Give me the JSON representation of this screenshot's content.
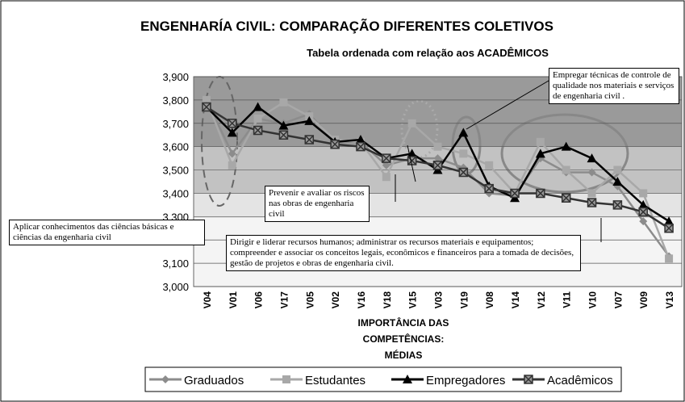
{
  "chart_data": {
    "type": "line",
    "title": "ENGENHARÍA CIVIL: COMPARAÇÃO DIFERENTES COLETIVOS",
    "subtitle": "Tabela  ordenada com relação aos ACADÊMICOS",
    "x_label": [
      "IMPORTÂNCIA DAS",
      "COMPETÊNCIAS:",
      "MÉDIAS"
    ],
    "categories": [
      "V04",
      "V01",
      "V06",
      "V17",
      "V05",
      "V02",
      "V16",
      "V18",
      "V15",
      "V03",
      "V19",
      "V08",
      "V14",
      "V12",
      "V11",
      "V10",
      "V07",
      "V09",
      "V13"
    ],
    "series": [
      {
        "name": "Graduados",
        "color": "#8c8c8c",
        "marker": "diamond",
        "values": [
          3.8,
          3.57,
          3.72,
          3.7,
          3.74,
          3.62,
          3.62,
          3.52,
          3.55,
          3.55,
          3.51,
          3.4,
          3.39,
          3.55,
          3.49,
          3.49,
          3.43,
          3.28,
          3.13
        ]
      },
      {
        "name": "Estudantes",
        "color": "#a8a8a8",
        "marker": "square",
        "values": [
          3.8,
          3.52,
          3.72,
          3.79,
          3.73,
          3.63,
          3.62,
          3.47,
          3.7,
          3.6,
          3.57,
          3.52,
          3.4,
          3.62,
          3.5,
          3.4,
          3.5,
          3.4,
          3.12
        ]
      },
      {
        "name": "Empregadores",
        "color": "#000000",
        "marker": "triangle",
        "values": [
          3.77,
          3.66,
          3.77,
          3.69,
          3.71,
          3.62,
          3.63,
          3.55,
          3.57,
          3.5,
          3.66,
          3.43,
          3.38,
          3.57,
          3.6,
          3.55,
          3.45,
          3.35,
          3.28
        ]
      },
      {
        "name": "Acadêmicos",
        "color": "#333333",
        "marker": "xsquare",
        "values": [
          3.77,
          3.7,
          3.67,
          3.65,
          3.63,
          3.61,
          3.6,
          3.55,
          3.54,
          3.52,
          3.49,
          3.42,
          3.4,
          3.4,
          3.38,
          3.36,
          3.35,
          3.32,
          3.25
        ]
      }
    ],
    "ylim": [
      3.0,
      3.9
    ],
    "yticks": [
      {
        "value": 3.0,
        "label": "3,000"
      },
      {
        "value": 3.1,
        "label": "3,100"
      },
      {
        "value": 3.2,
        "label": "3,200"
      },
      {
        "value": 3.3,
        "label": "3,300"
      },
      {
        "value": 3.4,
        "label": "3,400"
      },
      {
        "value": 3.5,
        "label": "3,500"
      },
      {
        "value": 3.6,
        "label": "3,600"
      },
      {
        "value": 3.7,
        "label": "3,700"
      },
      {
        "value": 3.8,
        "label": "3,800"
      },
      {
        "value": 3.9,
        "label": "3,900"
      }
    ],
    "grid": true,
    "annotations": [
      "Empregar  técnicas de controle de qualidade nos materiais e serviços de engenharia civil .",
      "Prevenir e avaliar os riscos nas obras de  engenharia civil",
      "Aplicar conhecimentos das ciências básicas e ciências da engenharia civil",
      "Dirigir e liderar recursos humanos; administrar os recursos materiais e equipamentos; compreender e associar os conceitos legais, econômicos e financeiros para a tomada de decisões, gestão de projetos e obras de engenharia civil."
    ]
  }
}
